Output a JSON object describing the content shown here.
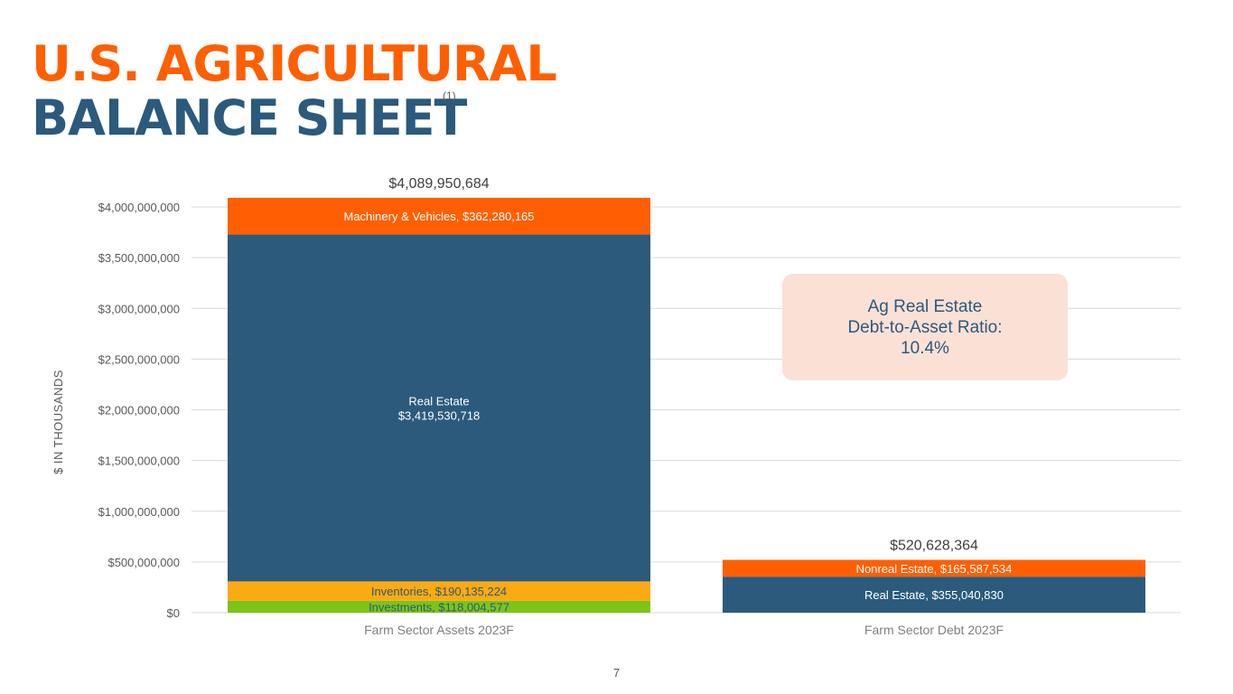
{
  "header": {
    "title_line1": "U.S. AGRICULTURAL",
    "title_line2": "BALANCE SHEET",
    "footnote_marker": "(1)"
  },
  "callout": {
    "line1": "Ag Real Estate",
    "line2": "Debt-to-Asset Ratio:",
    "line3": "10.4%"
  },
  "page_number": "7",
  "colors": {
    "title_orange": "#fe5f00",
    "title_blue": "#2b5a7c",
    "machinery": "#ff5f00",
    "real_estate": "#2b5a7c",
    "inventories": "#fcaa12",
    "investments": "#7cc418",
    "nonreal_estate": "#ff5f00",
    "callout_bg": "#fbe0d6"
  },
  "chart_data": {
    "type": "bar",
    "stacked": true,
    "ylabel": "$ IN THOUSANDS",
    "ylim": [
      0,
      4000000000
    ],
    "yticks": [
      0,
      500000000,
      1000000000,
      1500000000,
      2000000000,
      2500000000,
      3000000000,
      3500000000,
      4000000000
    ],
    "ytick_labels": [
      "$0",
      "$500,000,000",
      "$1,000,000,000",
      "$1,500,000,000",
      "$2,000,000,000",
      "$2,500,000,000",
      "$3,000,000,000",
      "$3,500,000,000",
      "$4,000,000,000"
    ],
    "grid": true,
    "categories": [
      "Farm Sector Assets 2023F",
      "Farm Sector Debt 2023F"
    ],
    "totals": [
      4089950684,
      520628364
    ],
    "total_labels": [
      "$4,089,950,684",
      "$520,628,364"
    ],
    "stacks": [
      {
        "category": "Farm Sector Assets 2023F",
        "segments": [
          {
            "name": "Investments",
            "value": 118004577,
            "label": "Investments, $118,004,577",
            "color": "#7cc418",
            "text_color": "#2b5a7c"
          },
          {
            "name": "Inventories",
            "value": 190135224,
            "label": "Inventories, $190,135,224",
            "color": "#fcaa12",
            "text_color": "#2b5a7c"
          },
          {
            "name": "Real Estate",
            "value": 3419530718,
            "label": "Real Estate\n$3,419,530,718",
            "color": "#2b5a7c",
            "text_color": "#ffffff"
          },
          {
            "name": "Machinery & Vehicles",
            "value": 362280165,
            "label": "Machinery & Vehicles, $362,280,165",
            "color": "#ff5f00",
            "text_color": "#ffffff"
          }
        ]
      },
      {
        "category": "Farm Sector Debt 2023F",
        "segments": [
          {
            "name": "Real Estate",
            "value": 355040830,
            "label": "Real Estate, $355,040,830",
            "color": "#2b5a7c",
            "text_color": "#ffffff"
          },
          {
            "name": "Nonreal Estate",
            "value": 165587534,
            "label": "Nonreal Estate, $165,587,534",
            "color": "#ff5f00",
            "text_color": "#ffffff"
          }
        ]
      }
    ]
  }
}
